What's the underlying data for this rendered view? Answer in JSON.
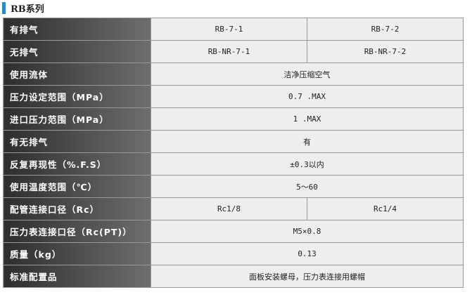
{
  "title": "RB系列",
  "accent_color": "#1a8fd8",
  "rows": [
    {
      "label": "有排气",
      "values": [
        "RB-7-1",
        "RB-7-2"
      ]
    },
    {
      "label": "无排气",
      "values": [
        "RB-NR-7-1",
        "RB-NR-7-2"
      ]
    },
    {
      "label": "使用流体",
      "values": [
        "洁净压缩空气"
      ]
    },
    {
      "label": "压力设定范围（MPa）",
      "values": [
        "0.7 .MAX"
      ]
    },
    {
      "label": "进口压力范围（MPa）",
      "values": [
        "1 .MAX"
      ]
    },
    {
      "label": "有无排气",
      "values": [
        "有"
      ]
    },
    {
      "label": "反复再现性（%.F.S）",
      "values": [
        "±0.3以内"
      ]
    },
    {
      "label": "使用温度范围（℃）",
      "values": [
        "5～60"
      ]
    },
    {
      "label": "配管连接口径（Rc）",
      "values": [
        "Rc1/8",
        "Rc1/4"
      ]
    },
    {
      "label": "压力表连接口径（Rc(PT)）",
      "values": [
        "M5×0.8"
      ]
    },
    {
      "label": "质量（kg）",
      "values": [
        "0.13"
      ]
    },
    {
      "label": "标准配置品",
      "values": [
        "面板安装螺母，压力表连接用螺帽"
      ]
    }
  ]
}
